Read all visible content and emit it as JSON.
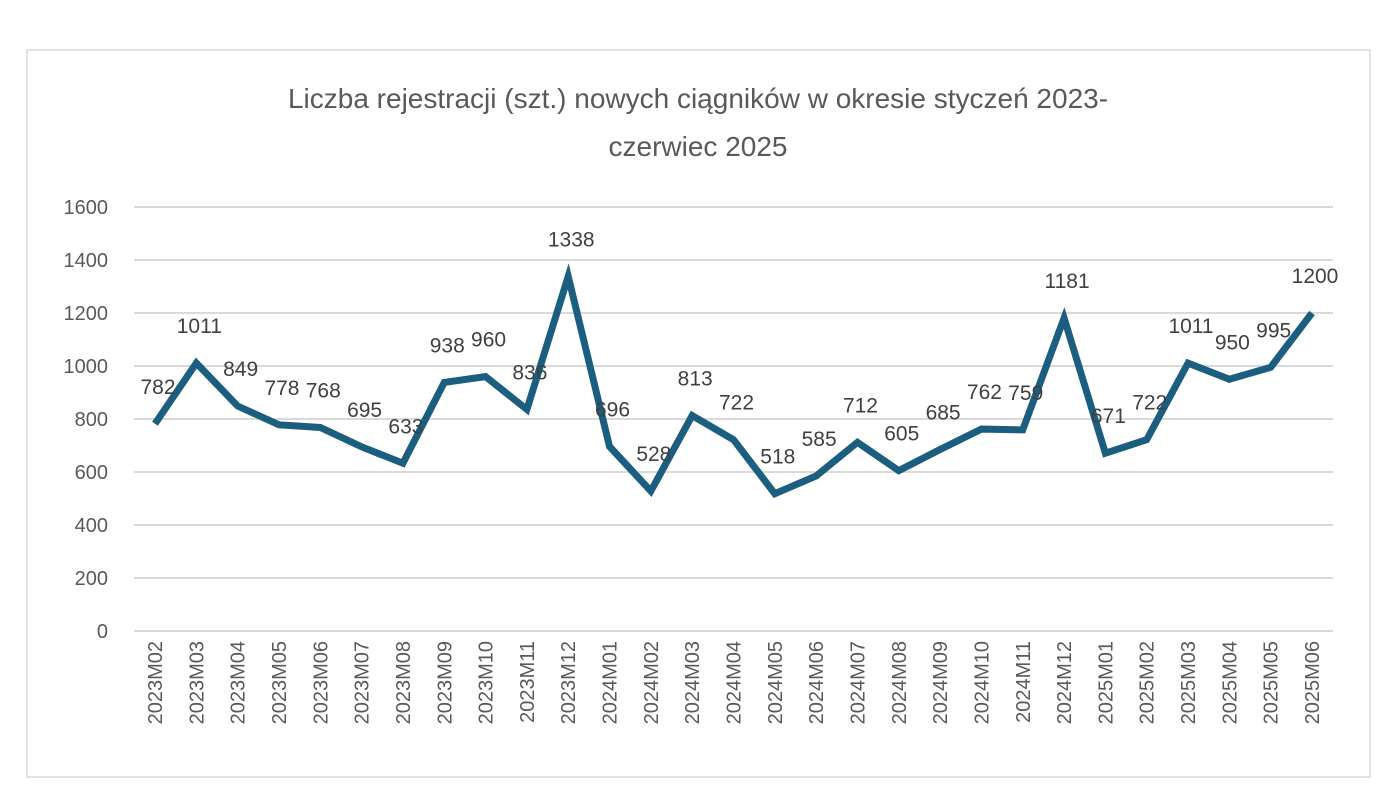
{
  "chart_data": {
    "type": "line",
    "title_lines": [
      "Liczba rejestracji (szt.) nowych ciągników w okresie styczeń 2023-",
      "czerwiec 2025"
    ],
    "xlabel": "",
    "ylabel": "",
    "ylim": [
      0,
      1600
    ],
    "yticks": [
      0,
      200,
      400,
      600,
      800,
      1000,
      1200,
      1400,
      1600
    ],
    "grid": true,
    "legend": "none",
    "line_color": "#1b5e80",
    "categories": [
      "2023M02",
      "2023M03",
      "2023M04",
      "2023M05",
      "2023M06",
      "2023M07",
      "2023M08",
      "2023M09",
      "2023M10",
      "2023M11",
      "2023M12",
      "2024M01",
      "2024M02",
      "2024M03",
      "2024M04",
      "2024M05",
      "2024M06",
      "2024M07",
      "2024M08",
      "2024M09",
      "2024M10",
      "2024M11",
      "2024M12",
      "2025M01",
      "2025M02",
      "2025M03",
      "2025M04",
      "2025M05",
      "2025M06"
    ],
    "series": [
      {
        "name": "Liczba rejestracji",
        "values": [
          782,
          1011,
          849,
          778,
          768,
          695,
          633,
          938,
          960,
          836,
          1338,
          696,
          528,
          813,
          722,
          518,
          585,
          712,
          605,
          685,
          762,
          759,
          1181,
          671,
          722,
          1011,
          950,
          995,
          1200
        ]
      }
    ]
  }
}
